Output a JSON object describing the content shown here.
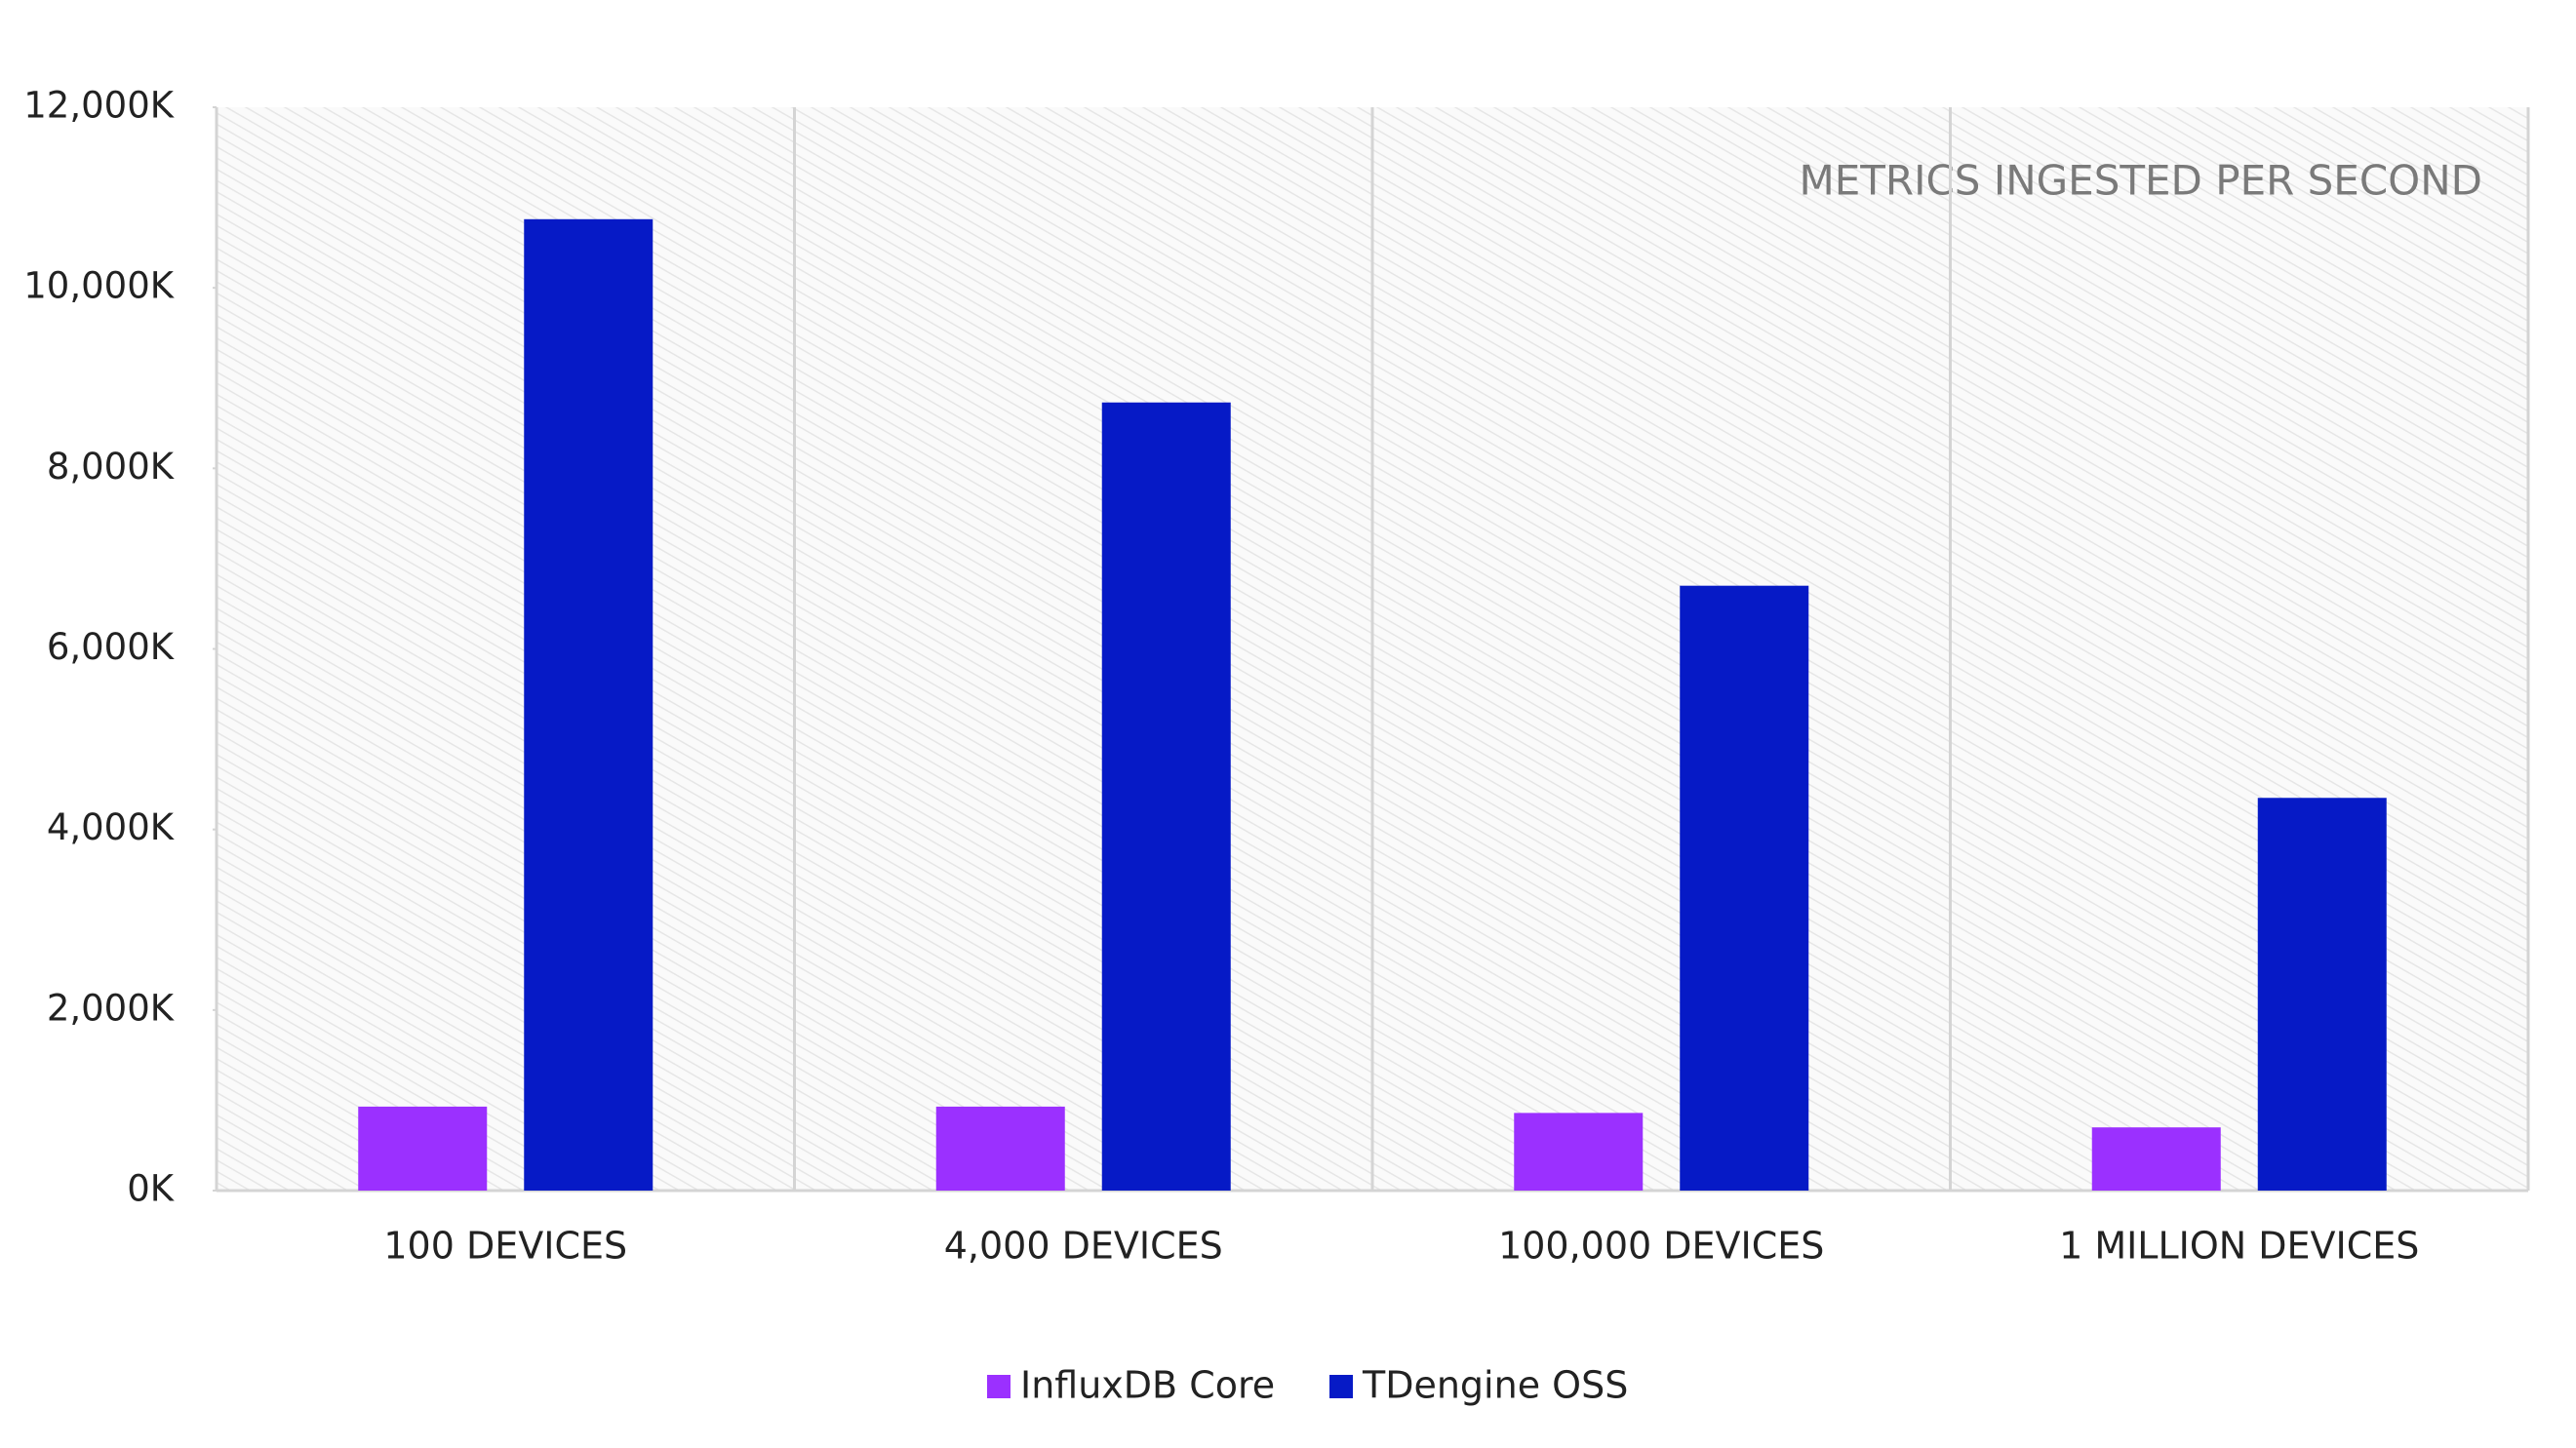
{
  "chart_data": {
    "type": "bar",
    "title": "METRICS INGESTED PER SECOND",
    "categories": [
      "100 DEVICES",
      "4,000 DEVICES",
      "100,000 DEVICES",
      "1 MILLION DEVICES"
    ],
    "series": [
      {
        "name": "InfluxDB Core",
        "color": "#9b30ff",
        "values": [
          930,
          930,
          860,
          700
        ]
      },
      {
        "name": "TDengine OSS",
        "color": "#061ac6",
        "values": [
          10760,
          8730,
          6700,
          4350
        ]
      }
    ],
    "ylim": [
      0,
      12000
    ],
    "yticks": [
      {
        "value": 0,
        "label": "0K"
      },
      {
        "value": 2000,
        "label": "2,000K"
      },
      {
        "value": 4000,
        "label": "4,000K"
      },
      {
        "value": 6000,
        "label": "6,000K"
      },
      {
        "value": 8000,
        "label": "8,000K"
      },
      {
        "value": 10000,
        "label": "10,000K"
      },
      {
        "value": 12000,
        "label": "12,000K"
      }
    ],
    "legend": "bottom"
  }
}
